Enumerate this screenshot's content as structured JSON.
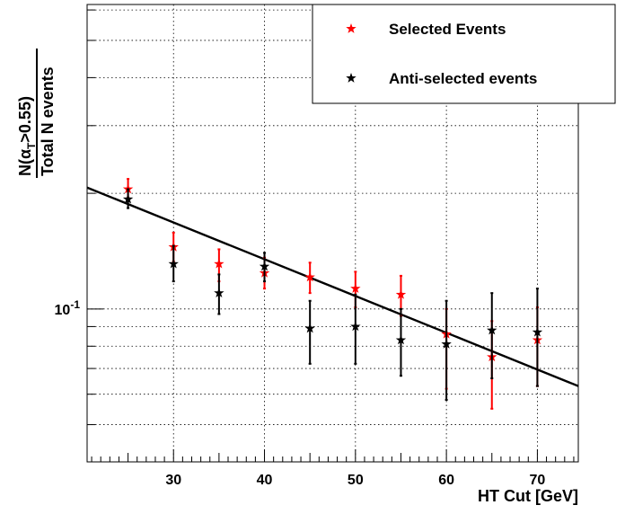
{
  "chart_data": {
    "type": "scatter",
    "xlabel": "HT Cut [GeV]",
    "ylabel": {
      "line1_prefix": "N(α",
      "line1_sub": "T",
      "line1_suffix": ">0.55)",
      "line2": "Total N events"
    },
    "xlim": [
      20.5,
      74.5
    ],
    "ylim": [
      0.04,
      0.62
    ],
    "yscale": "log",
    "grid": true,
    "legend_position": "top-right",
    "x_ticks": [
      30,
      40,
      50,
      60,
      70
    ],
    "y_tick_label": "10⁻¹",
    "y_tick_label_parts": {
      "base": "10",
      "exp": "-1"
    },
    "series": [
      {
        "name": "Selected Events",
        "color": "#ff0000",
        "marker": "star",
        "points": [
          {
            "x": 25,
            "y": 0.205,
            "err_lo": 0.195,
            "err_hi": 0.218
          },
          {
            "x": 30,
            "y": 0.145,
            "err_lo": 0.133,
            "err_hi": 0.158
          },
          {
            "x": 35,
            "y": 0.131,
            "err_lo": 0.118,
            "err_hi": 0.143
          },
          {
            "x": 40,
            "y": 0.124,
            "err_lo": 0.113,
            "err_hi": 0.136
          },
          {
            "x": 45,
            "y": 0.121,
            "err_lo": 0.11,
            "err_hi": 0.132
          },
          {
            "x": 50,
            "y": 0.113,
            "err_lo": 0.101,
            "err_hi": 0.125
          },
          {
            "x": 55,
            "y": 0.109,
            "err_lo": 0.096,
            "err_hi": 0.122
          },
          {
            "x": 60,
            "y": 0.086,
            "err_lo": 0.062,
            "err_hi": 0.1
          },
          {
            "x": 65,
            "y": 0.075,
            "err_lo": 0.055,
            "err_hi": 0.093
          },
          {
            "x": 70,
            "y": 0.083,
            "err_lo": 0.063,
            "err_hi": 0.101
          }
        ]
      },
      {
        "name": "Anti-selected events",
        "color": "#000000",
        "marker": "star",
        "points": [
          {
            "x": 25,
            "y": 0.193,
            "err_lo": 0.183,
            "err_hi": 0.205
          },
          {
            "x": 30,
            "y": 0.131,
            "err_lo": 0.118,
            "err_hi": 0.146
          },
          {
            "x": 35,
            "y": 0.11,
            "err_lo": 0.097,
            "err_hi": 0.123
          },
          {
            "x": 40,
            "y": 0.129,
            "err_lo": 0.118,
            "err_hi": 0.14
          },
          {
            "x": 45,
            "y": 0.089,
            "err_lo": 0.072,
            "err_hi": 0.105
          },
          {
            "x": 50,
            "y": 0.09,
            "err_lo": 0.072,
            "err_hi": 0.109
          },
          {
            "x": 55,
            "y": 0.083,
            "err_lo": 0.067,
            "err_hi": 0.1
          },
          {
            "x": 60,
            "y": 0.081,
            "err_lo": 0.058,
            "err_hi": 0.105
          },
          {
            "x": 65,
            "y": 0.088,
            "err_lo": 0.066,
            "err_hi": 0.11
          },
          {
            "x": 70,
            "y": 0.087,
            "err_lo": 0.063,
            "err_hi": 0.113
          }
        ]
      }
    ],
    "fit_line": {
      "color": "#000000",
      "points": [
        {
          "x": 20.5,
          "y": 0.207
        },
        {
          "x": 74.5,
          "y": 0.063
        }
      ]
    }
  }
}
